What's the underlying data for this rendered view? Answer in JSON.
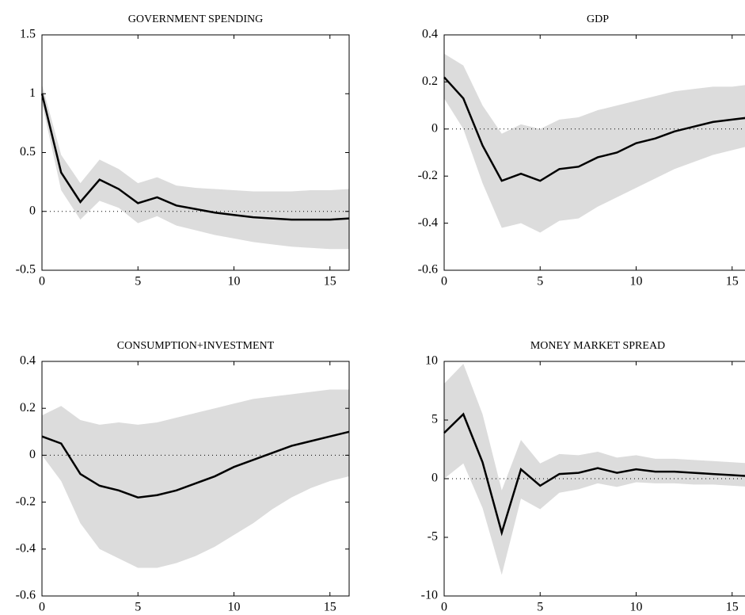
{
  "chart_data": [
    {
      "type": "band-line",
      "title": "GOVERNMENT SPENDING",
      "color": "#000000",
      "band_color": "#dcdcdc",
      "x": [
        0,
        1,
        2,
        3,
        4,
        5,
        6,
        7,
        8,
        9,
        10,
        11,
        12,
        13,
        14,
        15,
        16
      ],
      "values": [
        1.0,
        0.33,
        0.08,
        0.27,
        0.19,
        0.07,
        0.12,
        0.05,
        0.02,
        -0.01,
        -0.03,
        -0.05,
        -0.06,
        -0.07,
        -0.07,
        -0.07,
        -0.06
      ],
      "band_upper": [
        1.08,
        0.48,
        0.24,
        0.44,
        0.36,
        0.24,
        0.29,
        0.22,
        0.2,
        0.19,
        0.18,
        0.17,
        0.17,
        0.17,
        0.18,
        0.18,
        0.19
      ],
      "band_lower": [
        0.92,
        0.18,
        -0.07,
        0.09,
        0.03,
        -0.1,
        -0.04,
        -0.12,
        -0.16,
        -0.2,
        -0.23,
        -0.26,
        -0.28,
        -0.3,
        -0.31,
        -0.32,
        -0.32
      ],
      "xlim": [
        0,
        16
      ],
      "xticks": [
        0,
        5,
        10,
        15
      ],
      "ylim": [
        -0.5,
        1.5
      ],
      "yticks": [
        -0.5,
        0,
        0.5,
        1,
        1.5
      ],
      "reference_line": 0
    },
    {
      "type": "band-line",
      "title": "GDP",
      "color": "#000000",
      "band_color": "#dcdcdc",
      "x": [
        0,
        1,
        2,
        3,
        4,
        5,
        6,
        7,
        8,
        9,
        10,
        11,
        12,
        13,
        14,
        15,
        16
      ],
      "values": [
        0.22,
        0.13,
        -0.07,
        -0.22,
        -0.19,
        -0.22,
        -0.17,
        -0.16,
        -0.12,
        -0.1,
        -0.06,
        -0.04,
        -0.01,
        0.01,
        0.03,
        0.04,
        0.05
      ],
      "band_upper": [
        0.32,
        0.27,
        0.1,
        -0.02,
        0.02,
        0.0,
        0.04,
        0.05,
        0.08,
        0.1,
        0.12,
        0.14,
        0.16,
        0.17,
        0.18,
        0.18,
        0.19
      ],
      "band_lower": [
        0.13,
        0.0,
        -0.23,
        -0.42,
        -0.4,
        -0.44,
        -0.39,
        -0.38,
        -0.33,
        -0.29,
        -0.25,
        -0.21,
        -0.17,
        -0.14,
        -0.11,
        -0.09,
        -0.07
      ],
      "xlim": [
        0,
        16
      ],
      "xticks": [
        0,
        5,
        10,
        15
      ],
      "ylim": [
        -0.6,
        0.4
      ],
      "yticks": [
        -0.6,
        -0.4,
        -0.2,
        0,
        0.2,
        0.4
      ],
      "reference_line": 0
    },
    {
      "type": "band-line",
      "title": "CONSUMPTION+INVESTMENT",
      "color": "#000000",
      "band_color": "#dcdcdc",
      "x": [
        0,
        1,
        2,
        3,
        4,
        5,
        6,
        7,
        8,
        9,
        10,
        11,
        12,
        13,
        14,
        15,
        16
      ],
      "values": [
        0.08,
        0.05,
        -0.08,
        -0.13,
        -0.15,
        -0.18,
        -0.17,
        -0.15,
        -0.12,
        -0.09,
        -0.05,
        -0.02,
        0.01,
        0.04,
        0.06,
        0.08,
        0.1
      ],
      "band_upper": [
        0.17,
        0.21,
        0.15,
        0.13,
        0.14,
        0.13,
        0.14,
        0.16,
        0.18,
        0.2,
        0.22,
        0.24,
        0.25,
        0.26,
        0.27,
        0.28,
        0.28
      ],
      "band_lower": [
        0.0,
        -0.11,
        -0.29,
        -0.4,
        -0.44,
        -0.48,
        -0.48,
        -0.46,
        -0.43,
        -0.39,
        -0.34,
        -0.29,
        -0.23,
        -0.18,
        -0.14,
        -0.11,
        -0.09
      ],
      "xlim": [
        0,
        16
      ],
      "xticks": [
        0,
        5,
        10,
        15
      ],
      "ylim": [
        -0.6,
        0.4
      ],
      "yticks": [
        -0.6,
        -0.4,
        -0.2,
        0,
        0.2,
        0.4
      ],
      "reference_line": 0
    },
    {
      "type": "band-line",
      "title": "MONEY MARKET SPREAD",
      "color": "#000000",
      "band_color": "#dcdcdc",
      "x": [
        0,
        1,
        2,
        3,
        4,
        5,
        6,
        7,
        8,
        9,
        10,
        11,
        12,
        13,
        14,
        15,
        16
      ],
      "values": [
        3.9,
        5.5,
        1.4,
        -4.6,
        0.8,
        -0.6,
        0.4,
        0.5,
        0.9,
        0.5,
        0.8,
        0.6,
        0.6,
        0.5,
        0.4,
        0.3,
        0.2
      ],
      "band_upper": [
        8.1,
        9.8,
        5.5,
        -1.0,
        3.3,
        1.3,
        2.1,
        2.0,
        2.3,
        1.8,
        2.0,
        1.7,
        1.7,
        1.6,
        1.5,
        1.4,
        1.3
      ],
      "band_lower": [
        0.0,
        1.3,
        -2.5,
        -8.2,
        -1.7,
        -2.6,
        -1.2,
        -0.9,
        -0.4,
        -0.7,
        -0.3,
        -0.4,
        -0.4,
        -0.5,
        -0.5,
        -0.6,
        -0.7
      ],
      "xlim": [
        0,
        16
      ],
      "xticks": [
        0,
        5,
        10,
        15
      ],
      "ylim": [
        -10,
        10
      ],
      "yticks": [
        -10,
        -5,
        0,
        5,
        10
      ],
      "reference_line": 0
    }
  ]
}
